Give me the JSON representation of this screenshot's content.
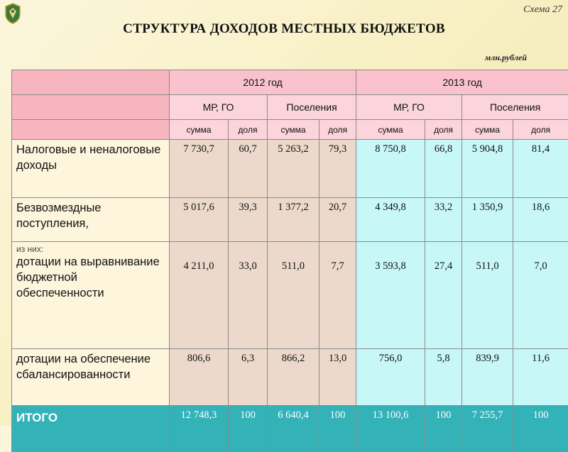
{
  "scheme_label": "Схема 27",
  "title": "СТРУКТУРА ДОХОДОВ МЕСТНЫХ БЮДЖЕТОВ",
  "units": "млн.рублей",
  "emblem_icon": "coat-of-arms",
  "colors": {
    "header_pink": "#f7b5c0",
    "col_2012": "#ecd9cc",
    "col_2013": "#c8f7f8",
    "total_row": "#33b2b8"
  },
  "table": {
    "years": [
      "2012 год",
      "2013 год"
    ],
    "groups": [
      "МР, ГО",
      "Поселения",
      "МР, ГО",
      "Поселения"
    ],
    "subheaders": [
      "сумма",
      "доля",
      "сумма",
      "доля",
      "сумма",
      "доля",
      "сумма",
      "доля"
    ],
    "rows": [
      {
        "label": "Налоговые и неналоговые доходы",
        "note": "",
        "values": [
          "7 730,7",
          "60,7",
          "5 263,2",
          "79,3",
          "8 750,8",
          "66,8",
          "5 904,8",
          "81,4"
        ]
      },
      {
        "label": "Безвозмездные поступления,",
        "note": "",
        "values": [
          "5 017,6",
          "39,3",
          "1 377,2",
          "20,7",
          "4 349,8",
          "33,2",
          "1 350,9",
          "18,6"
        ]
      },
      {
        "label": "дотации на выравнивание бюджетной обеспеченности",
        "note": "из них:",
        "values": [
          "4 211,0",
          "33,0",
          "511,0",
          "7,7",
          "3 593,8",
          "27,4",
          "511,0",
          "7,0"
        ]
      },
      {
        "label": "дотации на обеспечение сбалансированности",
        "note": "",
        "values": [
          "806,6",
          "6,3",
          "866,2",
          "13,0",
          "756,0",
          "5,8",
          "839,9",
          "11,6"
        ]
      }
    ],
    "total": {
      "label": "ИТОГО",
      "values": [
        "12 748,3",
        "100",
        "6 640,4",
        "100",
        "13 100,6",
        "100",
        "7 255,7",
        "100"
      ]
    }
  }
}
